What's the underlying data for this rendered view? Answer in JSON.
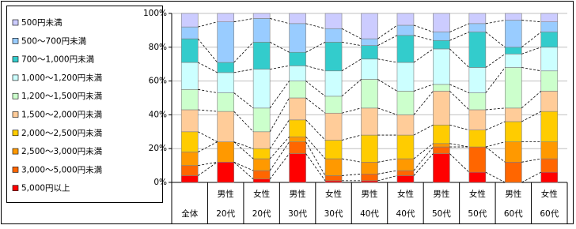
{
  "chart_data": {
    "type": "stacked_bar_100",
    "categories": [
      [
        null,
        "全体"
      ],
      [
        "男性",
        "20代"
      ],
      [
        "女性",
        "20代"
      ],
      [
        "男性",
        "30代"
      ],
      [
        "女性",
        "30代"
      ],
      [
        "男性",
        "40代"
      ],
      [
        "女性",
        "40代"
      ],
      [
        "男性",
        "50代"
      ],
      [
        "女性",
        "50代"
      ],
      [
        "男性",
        "60代"
      ],
      [
        "女性",
        "60代"
      ]
    ],
    "series": [
      {
        "name": "5,000円以上",
        "color": "#ff0000",
        "values": [
          4,
          12,
          2,
          17,
          1,
          1,
          4,
          17,
          6,
          0,
          6
        ]
      },
      {
        "name": "3,000～5,000円未満",
        "color": "#ff6600",
        "values": [
          6,
          0,
          5,
          7,
          3,
          4,
          3,
          4,
          15,
          12,
          8
        ]
      },
      {
        "name": "2,500～3,000円未満",
        "color": "#ff9900",
        "values": [
          8,
          12,
          7,
          3,
          10,
          7,
          7,
          2,
          0,
          12,
          10
        ]
      },
      {
        "name": "2,000～2,500円未満",
        "color": "#ffcc00",
        "values": [
          12,
          0,
          6,
          10,
          11,
          16,
          14,
          11,
          10,
          12,
          18
        ]
      },
      {
        "name": "1,500～2,000円未満",
        "color": "#ffcc99",
        "values": [
          13,
          18,
          10,
          13,
          16,
          16,
          12,
          20,
          12,
          8,
          12
        ]
      },
      {
        "name": "1,200～1,500円未満",
        "color": "#ccffcc",
        "values": [
          12,
          11,
          14,
          10,
          10,
          17,
          14,
          4,
          10,
          24,
          12
        ]
      },
      {
        "name": "1,000～1,200円未満",
        "color": "#ccffff",
        "values": [
          16,
          12,
          23,
          9,
          15,
          12,
          17,
          21,
          15,
          8,
          14
        ]
      },
      {
        "name": "700～1,000円未満",
        "color": "#33cccc",
        "values": [
          14,
          6,
          16,
          8,
          17,
          8,
          16,
          5,
          21,
          4,
          9
        ]
      },
      {
        "name": "500～700円未満",
        "color": "#99ccff",
        "values": [
          7,
          24,
          14,
          17,
          8,
          4,
          6,
          5,
          5,
          16,
          6
        ]
      },
      {
        "name": "500円未満",
        "color": "#ccccff",
        "values": [
          8,
          5,
          3,
          6,
          9,
          15,
          7,
          11,
          6,
          4,
          5
        ]
      }
    ],
    "ylim": [
      0,
      100
    ],
    "yticks": [
      {
        "value": 0,
        "label": "0%"
      },
      {
        "value": 20,
        "label": "20%"
      },
      {
        "value": 40,
        "label": "40%"
      },
      {
        "value": 60,
        "label": "60%"
      },
      {
        "value": 80,
        "label": "80%"
      },
      {
        "value": 100,
        "label": "100%"
      }
    ],
    "grid": true
  }
}
